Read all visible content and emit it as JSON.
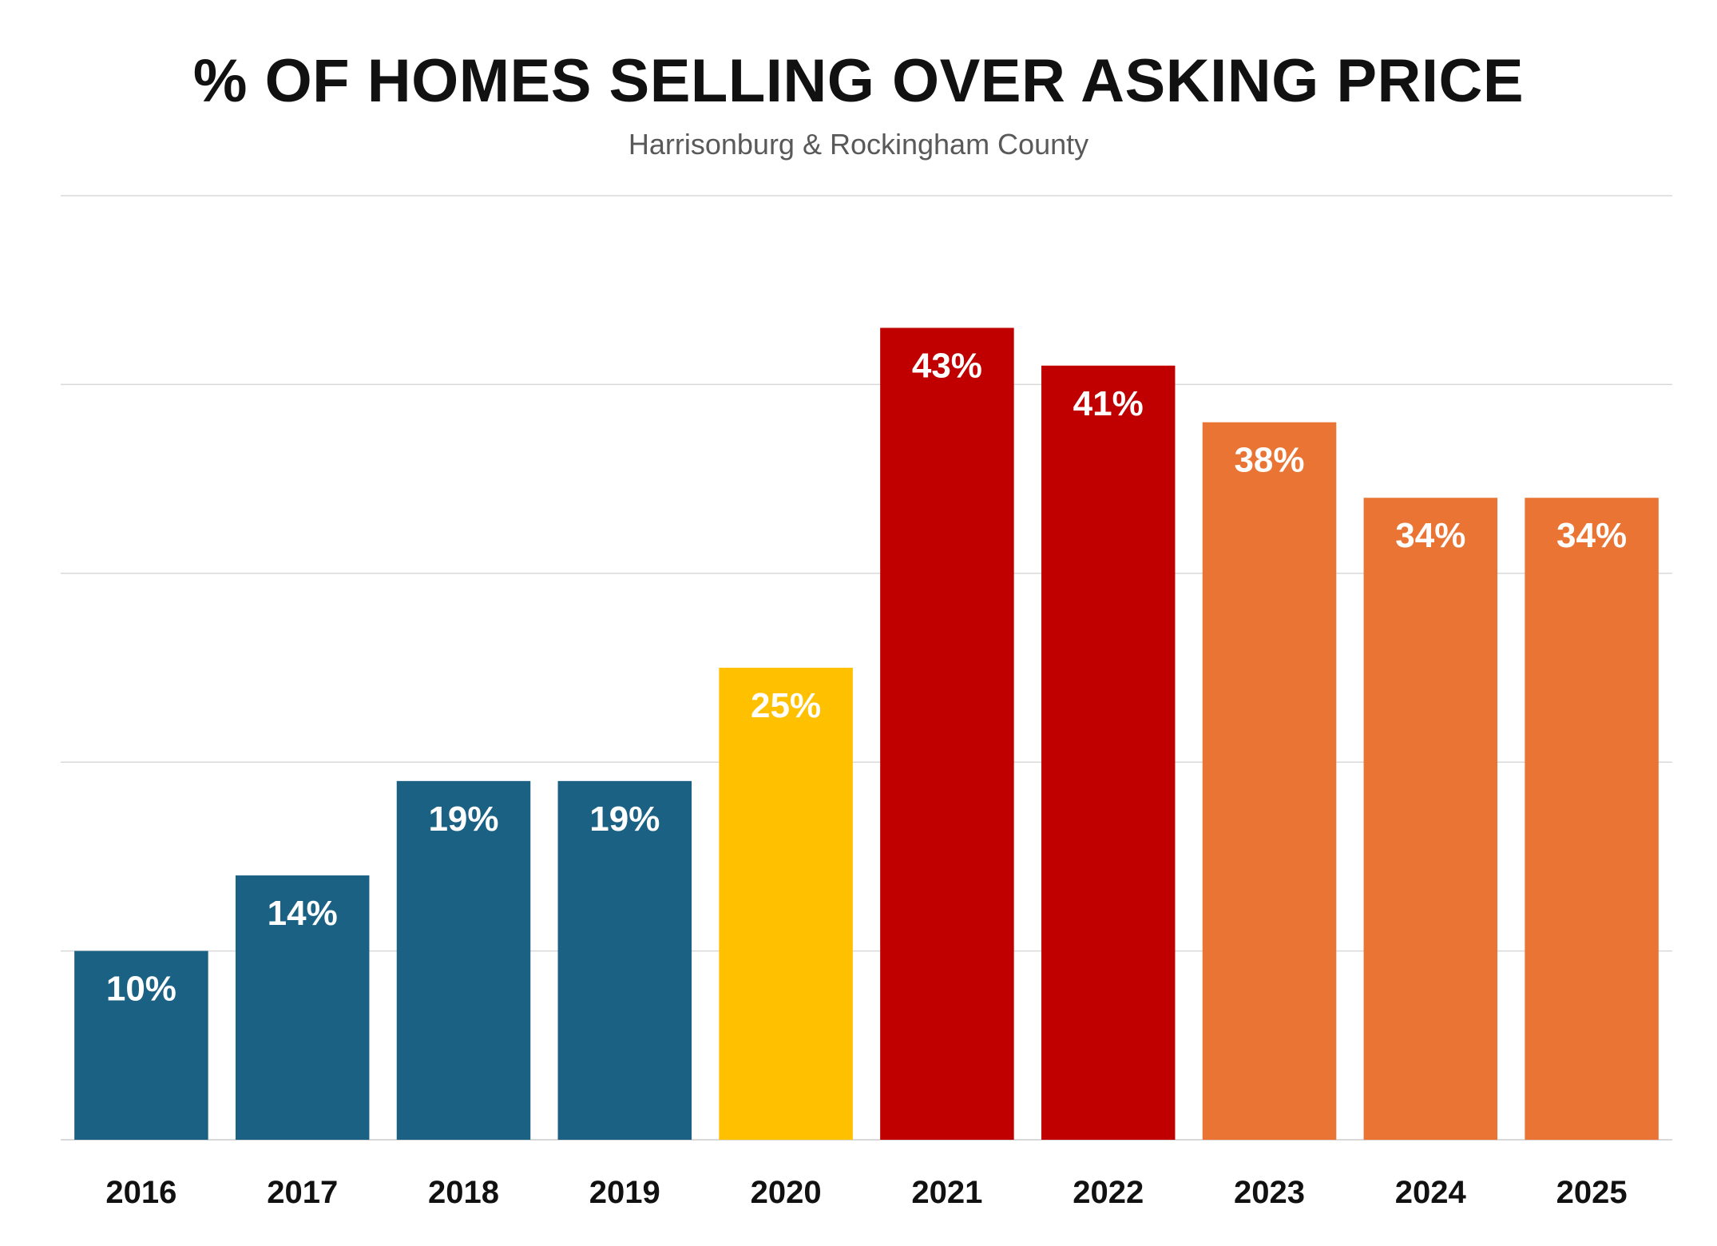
{
  "title": "% OF HOMES SELLING OVER ASKING PRICE",
  "subtitle": "Harrisonburg & Rockingham County",
  "chart_data": {
    "type": "bar",
    "title": "% OF HOMES SELLING OVER ASKING PRICE",
    "subtitle": "Harrisonburg & Rockingham County",
    "xlabel": "",
    "ylabel": "",
    "categories": [
      "2016",
      "2017",
      "2018",
      "2019",
      "2020",
      "2021",
      "2022",
      "2023",
      "2024",
      "2025"
    ],
    "values": [
      10,
      14,
      19,
      19,
      25,
      43,
      41,
      38,
      34,
      34
    ],
    "data_labels": [
      "10%",
      "14%",
      "19%",
      "19%",
      "25%",
      "43%",
      "41%",
      "38%",
      "34%",
      "34%"
    ],
    "bar_colors": [
      "#1a6183",
      "#1a6183",
      "#1a6183",
      "#1a6183",
      "#ffc000",
      "#c00000",
      "#c00000",
      "#e97434",
      "#e97434",
      "#e97434"
    ],
    "ylim": [
      0,
      50
    ],
    "grid": true,
    "gridline_color": "#d9d9d9",
    "label_color": "#ffffff",
    "legend": "none"
  }
}
